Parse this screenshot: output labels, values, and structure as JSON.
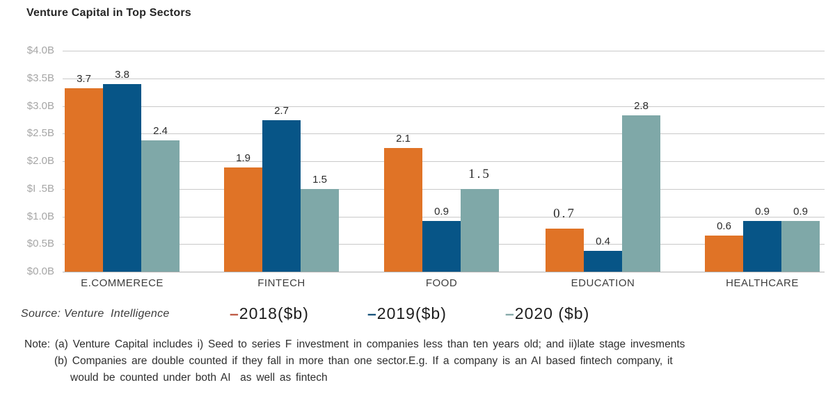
{
  "title": "Venture Capital in Top Sectors",
  "source": "Source: Venture  Intelligence",
  "legend": {
    "items": [
      {
        "dash": "–",
        "label": "2018($b)",
        "dash_color": "#be5a45"
      },
      {
        "dash": "–",
        "label": "2019($b)",
        "dash_color": "#17527a"
      },
      {
        "dash": "–",
        "label": "2020 ($b)",
        "dash_color": "#85a8a8"
      }
    ]
  },
  "notes": {
    "line1": "Note: (a) Venture Capital includes i) Seed to series F investment in companies less than ten years old; and ii)late stage invesments",
    "line2": "(b) Companies are double counted if they fall in more than one sector.E.g. If a company is an AI based fintech company, it",
    "line3": "would be counted under both AI  as well as fintech"
  },
  "chart_data": {
    "type": "bar",
    "title": "Venture Capital in Top Sectors",
    "categories": [
      "E.COMMERECE",
      "FINTECH",
      "FOOD",
      "EDUCATION",
      "HEALTHCARE"
    ],
    "series": [
      {
        "name": "2018($b)",
        "color": "#e07326",
        "values": [
          3.7,
          1.9,
          2.1,
          0.7,
          0.6
        ]
      },
      {
        "name": "2019($b)",
        "color": "#075587",
        "values": [
          3.8,
          2.7,
          0.9,
          0.4,
          0.9
        ]
      },
      {
        "name": "2020 ($b)",
        "color": "#7fa8a8",
        "values": [
          2.4,
          1.5,
          1.5,
          2.8,
          0.9
        ]
      }
    ],
    "drawn_bar_heights": [
      [
        3.32,
        1.89,
        2.24,
        0.78,
        0.65
      ],
      [
        3.4,
        2.74,
        0.92,
        0.38,
        0.92
      ],
      [
        2.38,
        1.5,
        1.5,
        2.83,
        0.92
      ]
    ],
    "serif_value_labels": [
      {
        "series": 0,
        "category": 3
      },
      {
        "series": 2,
        "category": 2
      }
    ],
    "y_tick_labels": [
      "$4.0B",
      "$3.5B",
      "$3.0B",
      "$2.5B",
      "$2.0B",
      "$I .5B",
      "$1.0B",
      "$0.5B",
      "$0.0B"
    ],
    "xlabel": "",
    "ylabel": "",
    "ylim": [
      0,
      4
    ],
    "grid": true,
    "legend_position": "bottom"
  }
}
